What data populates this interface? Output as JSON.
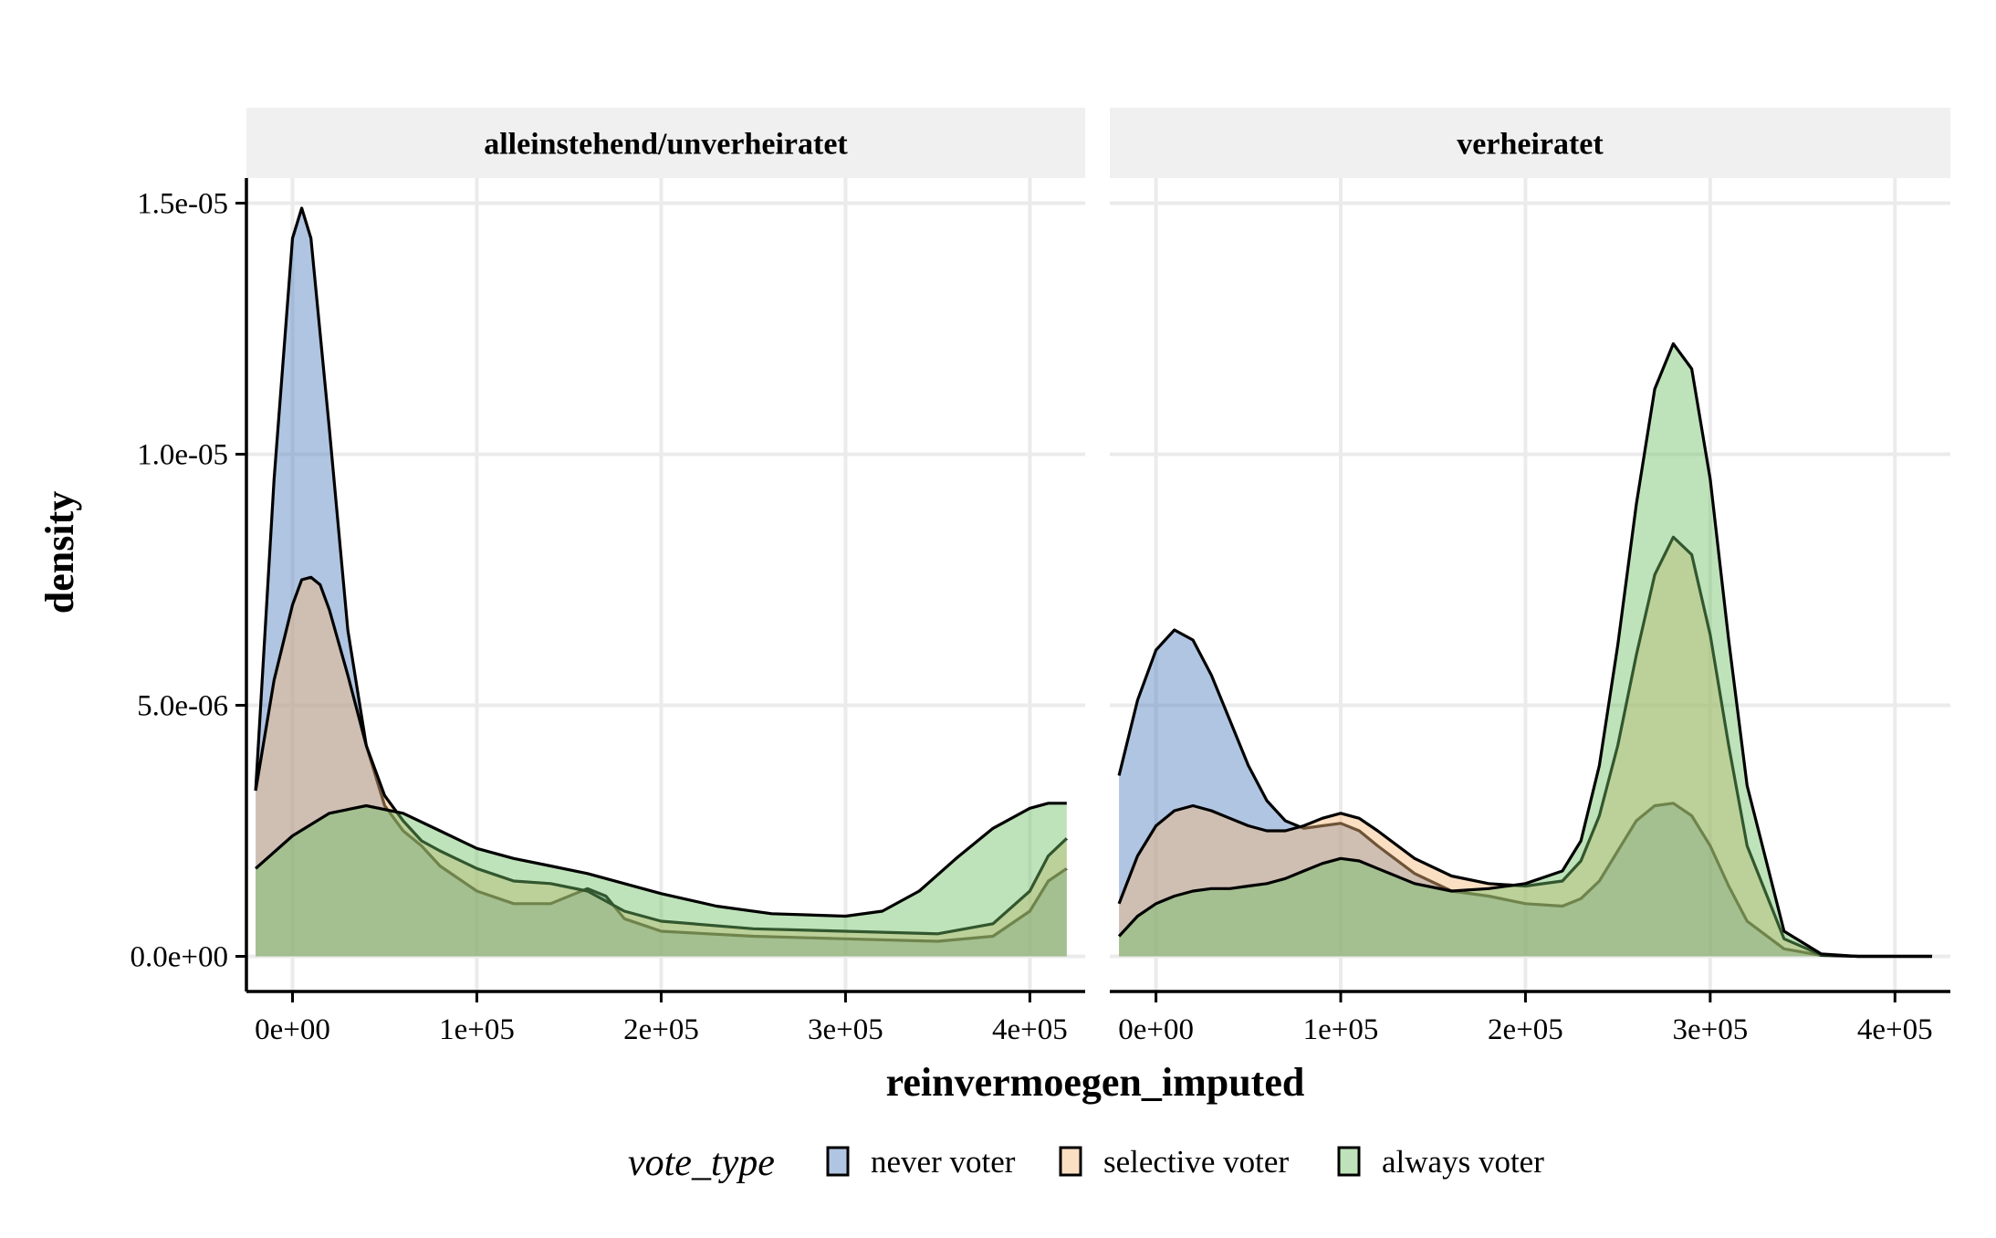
{
  "colors": {
    "never voter": "#4f7ebf",
    "selective voter": "#f6b97a",
    "always voter": "#6fc267",
    "grid": "#ebebeb",
    "strip_bg": "#f0f0f0"
  },
  "chart_data": {
    "type": "area",
    "subtype": "density",
    "xlabel": "reinvermoegen_imputed",
    "ylabel": "density",
    "xlim": [
      -25000,
      430000
    ],
    "ylim": [
      -7e-07,
      1.55e-05
    ],
    "x_ticks": [
      0,
      100000,
      200000,
      300000,
      400000
    ],
    "x_tick_labels": [
      "0e+00",
      "1e+05",
      "2e+05",
      "3e+05",
      "4e+05"
    ],
    "y_ticks": [
      0,
      5e-06,
      1e-05,
      1.5e-05
    ],
    "y_tick_labels": [
      "0.0e+00",
      "5.0e-06",
      "1.0e-05",
      "1.5e-05"
    ],
    "grid": true,
    "fill_alpha": 0.45,
    "legend": {
      "title": "vote_type",
      "position": "bottom",
      "entries": [
        "never voter",
        "selective voter",
        "always voter"
      ]
    },
    "panels": [
      {
        "strip": "alleinstehend/unverheiratet",
        "series": [
          {
            "name": "never voter",
            "x": [
              -20000,
              -10000,
              0,
              5000,
              10000,
              20000,
              30000,
              40000,
              50000,
              60000,
              70000,
              80000,
              100000,
              120000,
              140000,
              160000,
              170000,
              180000,
              200000,
              250000,
              300000,
              350000,
              380000,
              400000,
              410000,
              420000
            ],
            "y": [
              3.3e-06,
              9.5e-06,
              1.43e-05,
              1.49e-05,
              1.43e-05,
              1.05e-05,
              6.5e-06,
              4.2e-06,
              3e-06,
              2.5e-06,
              2.2e-06,
              1.8e-06,
              1.3e-06,
              1.05e-06,
              1.05e-06,
              1.35e-06,
              1.2e-06,
              7.5e-07,
              5e-07,
              4e-07,
              3.5e-07,
              3e-07,
              4e-07,
              9e-07,
              1.5e-06,
              1.75e-06
            ]
          },
          {
            "name": "selective voter",
            "x": [
              -20000,
              -10000,
              0,
              5000,
              10000,
              15000,
              20000,
              30000,
              40000,
              50000,
              60000,
              70000,
              80000,
              100000,
              120000,
              140000,
              160000,
              170000,
              180000,
              200000,
              250000,
              300000,
              350000,
              380000,
              400000,
              410000,
              420000
            ],
            "y": [
              3.3e-06,
              5.5e-06,
              7e-06,
              7.5e-06,
              7.55e-06,
              7.4e-06,
              6.9e-06,
              5.6e-06,
              4.2e-06,
              3.2e-06,
              2.7e-06,
              2.3e-06,
              2.1e-06,
              1.75e-06,
              1.5e-06,
              1.45e-06,
              1.3e-06,
              1.1e-06,
              9e-07,
              7e-07,
              5.5e-07,
              5e-07,
              4.5e-07,
              6.5e-07,
              1.3e-06,
              2e-06,
              2.35e-06
            ]
          },
          {
            "name": "always voter",
            "x": [
              -20000,
              0,
              20000,
              40000,
              60000,
              80000,
              100000,
              120000,
              140000,
              160000,
              180000,
              200000,
              230000,
              260000,
              300000,
              320000,
              340000,
              360000,
              380000,
              400000,
              410000,
              420000
            ],
            "y": [
              1.75e-06,
              2.4e-06,
              2.85e-06,
              3e-06,
              2.85e-06,
              2.5e-06,
              2.15e-06,
              1.95e-06,
              1.8e-06,
              1.65e-06,
              1.45e-06,
              1.25e-06,
              1e-06,
              8.5e-07,
              8e-07,
              9e-07,
              1.3e-06,
              1.95e-06,
              2.55e-06,
              2.95e-06,
              3.05e-06,
              3.05e-06
            ]
          }
        ]
      },
      {
        "strip": "verheiratet",
        "series": [
          {
            "name": "never voter",
            "x": [
              -20000,
              -10000,
              0,
              10000,
              20000,
              30000,
              40000,
              50000,
              60000,
              70000,
              80000,
              90000,
              100000,
              110000,
              120000,
              140000,
              160000,
              180000,
              200000,
              220000,
              230000,
              240000,
              250000,
              260000,
              270000,
              280000,
              290000,
              300000,
              310000,
              320000,
              340000,
              360000,
              380000,
              400000,
              420000
            ],
            "y": [
              3.6e-06,
              5.1e-06,
              6.1e-06,
              6.5e-06,
              6.3e-06,
              5.6e-06,
              4.7e-06,
              3.8e-06,
              3.1e-06,
              2.7e-06,
              2.55e-06,
              2.6e-06,
              2.65e-06,
              2.5e-06,
              2.2e-06,
              1.65e-06,
              1.3e-06,
              1.2e-06,
              1.05e-06,
              1e-06,
              1.15e-06,
              1.5e-06,
              2.1e-06,
              2.7e-06,
              3e-06,
              3.05e-06,
              2.8e-06,
              2.2e-06,
              1.4e-06,
              7e-07,
              1.5e-07,
              2e-08,
              0,
              0,
              0
            ]
          },
          {
            "name": "selective voter",
            "x": [
              -20000,
              -10000,
              0,
              10000,
              20000,
              30000,
              40000,
              50000,
              60000,
              70000,
              80000,
              90000,
              100000,
              110000,
              120000,
              140000,
              160000,
              180000,
              200000,
              220000,
              230000,
              240000,
              250000,
              260000,
              270000,
              280000,
              290000,
              300000,
              310000,
              320000,
              340000,
              360000,
              380000,
              400000,
              420000
            ],
            "y": [
              1.05e-06,
              2e-06,
              2.6e-06,
              2.9e-06,
              3e-06,
              2.9e-06,
              2.75e-06,
              2.6e-06,
              2.5e-06,
              2.5e-06,
              2.6e-06,
              2.75e-06,
              2.85e-06,
              2.75e-06,
              2.5e-06,
              1.95e-06,
              1.6e-06,
              1.45e-06,
              1.4e-06,
              1.5e-06,
              1.9e-06,
              2.8e-06,
              4.2e-06,
              6e-06,
              7.6e-06,
              8.35e-06,
              8e-06,
              6.4e-06,
              4.2e-06,
              2.2e-06,
              3.5e-07,
              3e-08,
              0,
              0,
              0
            ]
          },
          {
            "name": "always voter",
            "x": [
              -20000,
              -10000,
              0,
              10000,
              20000,
              30000,
              40000,
              50000,
              60000,
              70000,
              80000,
              90000,
              100000,
              110000,
              120000,
              140000,
              160000,
              180000,
              200000,
              220000,
              230000,
              240000,
              250000,
              260000,
              270000,
              280000,
              290000,
              300000,
              310000,
              320000,
              340000,
              360000,
              380000,
              400000,
              420000
            ],
            "y": [
              4e-07,
              8e-07,
              1.05e-06,
              1.2e-06,
              1.3e-06,
              1.35e-06,
              1.35e-06,
              1.4e-06,
              1.45e-06,
              1.55e-06,
              1.7e-06,
              1.85e-06,
              1.95e-06,
              1.9e-06,
              1.75e-06,
              1.45e-06,
              1.3e-06,
              1.35e-06,
              1.45e-06,
              1.7e-06,
              2.3e-06,
              3.8e-06,
              6.2e-06,
              9e-06,
              1.13e-05,
              1.22e-05,
              1.17e-05,
              9.5e-06,
              6.3e-06,
              3.4e-06,
              5e-07,
              5e-08,
              0,
              0,
              0
            ]
          }
        ]
      }
    ]
  }
}
